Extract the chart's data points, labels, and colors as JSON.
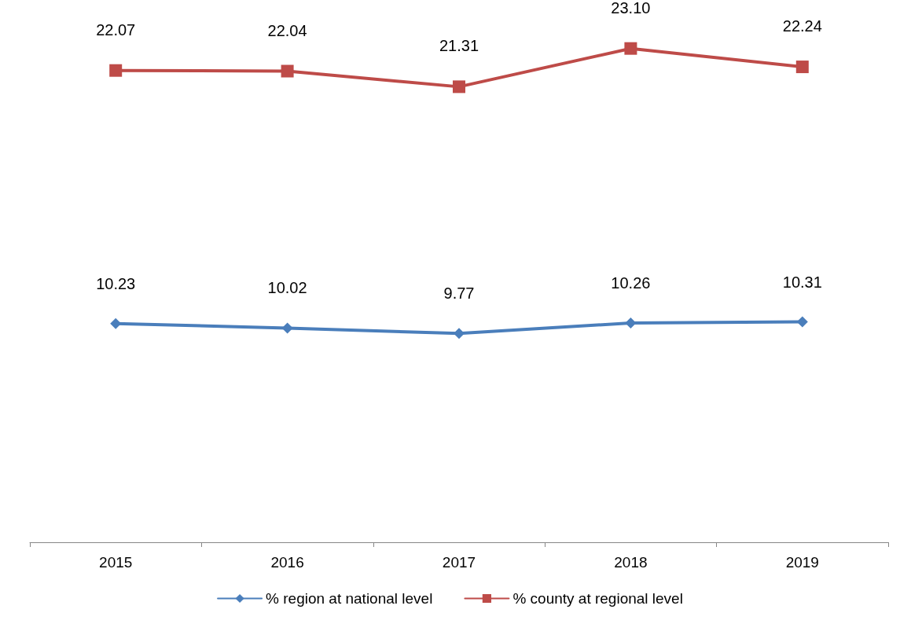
{
  "chart_data": {
    "type": "line",
    "categories": [
      "2015",
      "2016",
      "2017",
      "2018",
      "2019"
    ],
    "series": [
      {
        "name": "% region at national level",
        "color": "#4a7ebb",
        "marker": "diamond",
        "values": [
          10.23,
          10.02,
          9.77,
          10.26,
          10.31
        ],
        "value_labels": [
          "10.23",
          "10.02",
          "9.77",
          "10.26",
          "10.31"
        ]
      },
      {
        "name": "% county at regional level",
        "color": "#be4b48",
        "marker": "square",
        "values": [
          22.07,
          22.04,
          21.31,
          23.1,
          22.24
        ],
        "value_labels": [
          "22.07",
          "22.04",
          "21.31",
          "23.10",
          "22.24"
        ]
      }
    ],
    "grid": false,
    "legend": "bottom",
    "tick_labels": "x"
  }
}
